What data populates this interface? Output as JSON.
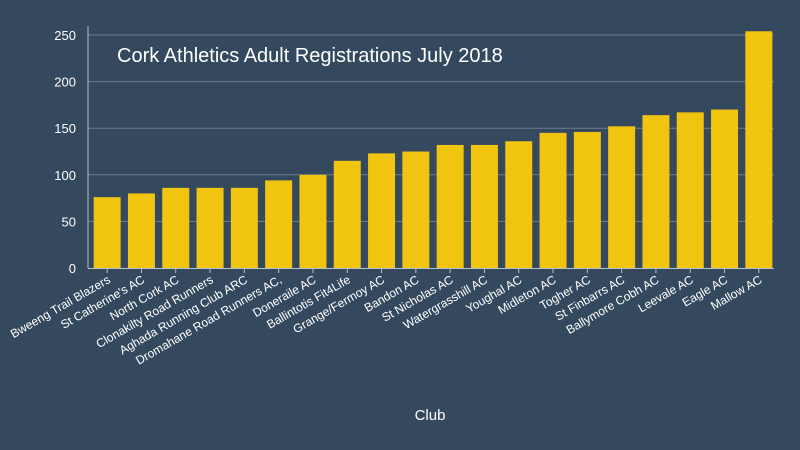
{
  "colors": {
    "background": "#34495e",
    "bar": "#f1c40f",
    "grid": "#6c7d8f",
    "axis": "#b7c0ca",
    "text": "#ffffff"
  },
  "chart_data": {
    "type": "bar",
    "title": "Cork Athletics Adult Registrations July 2018",
    "xlabel": "Club",
    "ylabel": "",
    "ylim": [
      0,
      250
    ],
    "yticks": [
      0,
      50,
      100,
      150,
      200,
      250
    ],
    "grid": true,
    "categories": [
      "Bweeng Trail Blazers",
      "St Catherine's AC",
      "North Cork AC",
      "Clonakilty Road Runners",
      "Aghada Running Club ARC",
      "Dromahane Road Runners AC,",
      "Doneraile AC",
      "Ballintotis Fit4Life",
      "Grange/Fermoy AC",
      "Bandon AC",
      "St Nicholas AC",
      "Watergrasshill AC",
      "Youghal AC",
      "Midleton AC",
      "Togher AC",
      "St Finbarrs AC",
      "Ballymore Cobh AC",
      "Leevale AC",
      "Eagle AC",
      "Mallow AC"
    ],
    "values": [
      76,
      80,
      86,
      86,
      86,
      94,
      100,
      115,
      123,
      125,
      132,
      132,
      136,
      145,
      146,
      152,
      164,
      167,
      170,
      254
    ]
  }
}
